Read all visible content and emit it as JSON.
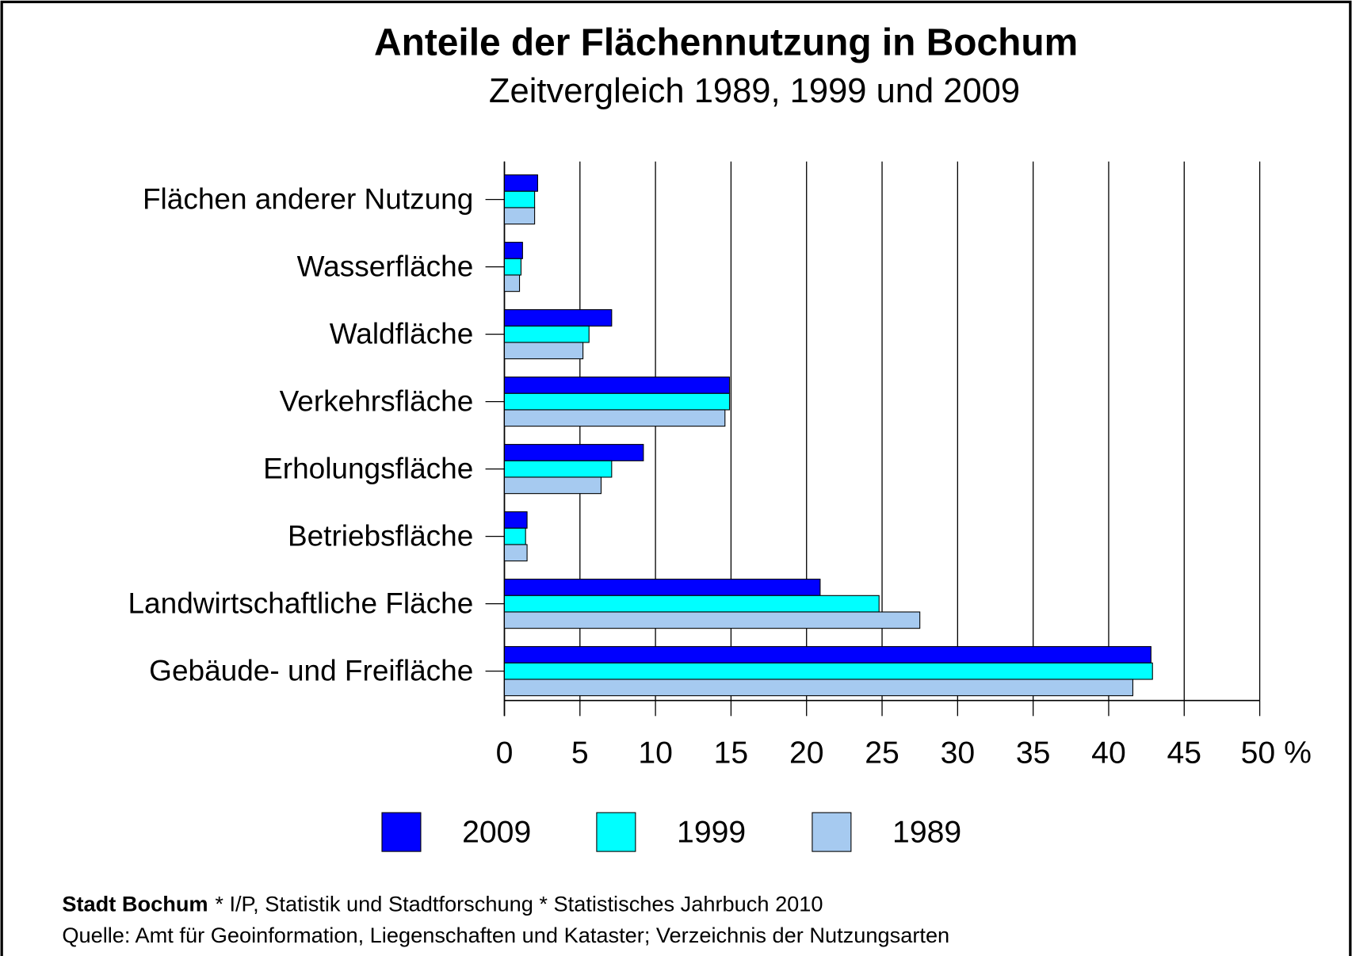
{
  "chart_data": {
    "type": "hbar",
    "title": "Anteile der Flächennutzung in Bochum",
    "subtitle": "Zeitvergleich 1989, 1999 und 2009",
    "categories": [
      "Flächen anderer Nutzung",
      "Wasserfläche",
      "Waldfläche",
      "Verkehrsfläche",
      "Erholungsfläche",
      "Betriebsfläche",
      "Landwirtschaftliche Fläche",
      "Gebäude- und Freifläche"
    ],
    "series": [
      {
        "name": "2009",
        "color": "#0000ff",
        "values": [
          2.2,
          1.2,
          7.1,
          14.9,
          9.2,
          1.5,
          20.9,
          42.8
        ]
      },
      {
        "name": "1999",
        "color": "#00ffff",
        "values": [
          2.0,
          1.1,
          5.6,
          14.9,
          7.1,
          1.4,
          24.8,
          42.9
        ]
      },
      {
        "name": "1989",
        "color": "#a6caf0",
        "values": [
          2.0,
          1.0,
          5.2,
          14.6,
          6.4,
          1.5,
          27.5,
          41.6
        ]
      }
    ],
    "xlim": [
      0,
      50
    ],
    "xticks": [
      0,
      5,
      10,
      15,
      20,
      25,
      30,
      35,
      40,
      45,
      {
        "value": 50,
        "label": "50 %"
      }
    ],
    "grid": true,
    "footer_bold": "Stadt Bochum",
    "footer_rest": "* I/P, Statistik und Stadtforschung * Statistisches Jahrbuch 2010",
    "source": "Quelle: Amt für Geoinformation, Liegenschaften und Kataster; Verzeichnis der Nutzungsarten"
  }
}
